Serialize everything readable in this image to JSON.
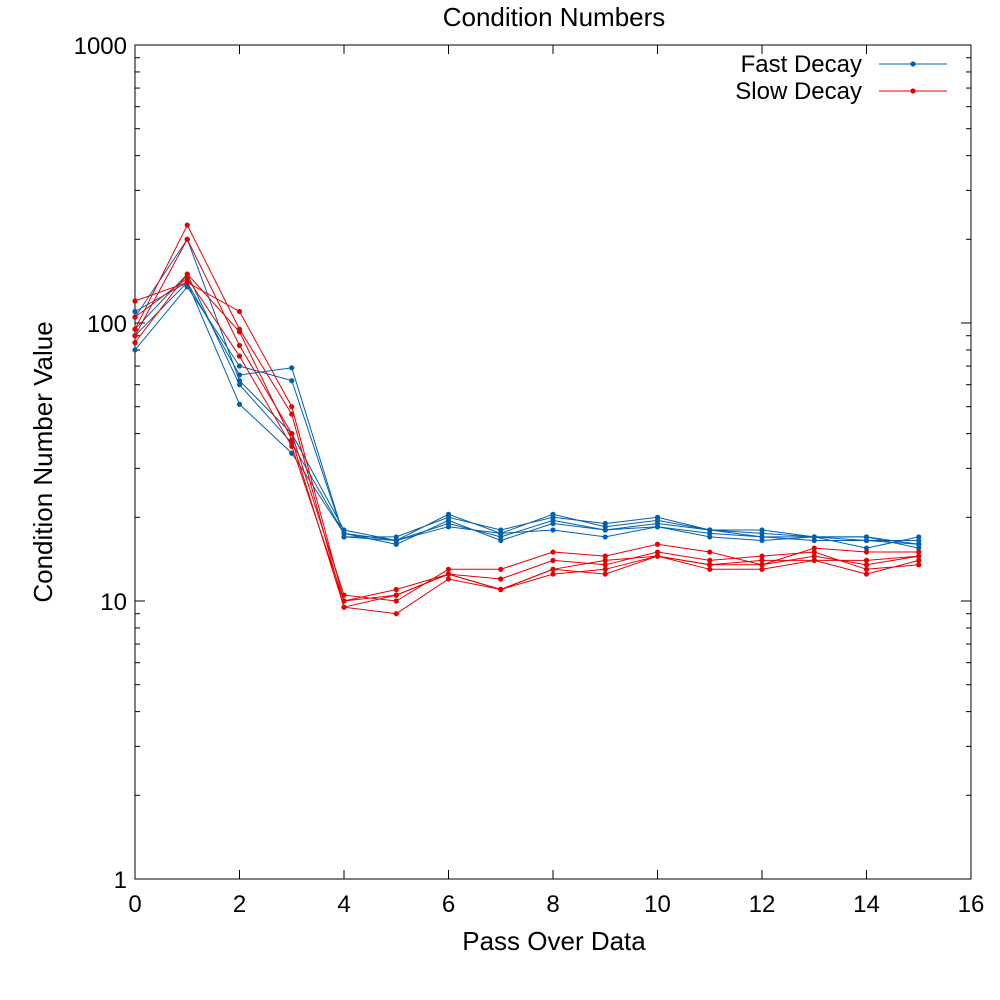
{
  "chart_data": {
    "type": "line",
    "title": "Condition Numbers",
    "xlabel": "Pass Over Data",
    "ylabel": "Condition Number Value",
    "xlim": [
      0,
      16
    ],
    "ylim": [
      1,
      1000
    ],
    "y_scale": "log",
    "x_ticks": [
      "0",
      "2",
      "4",
      "6",
      "8",
      "10",
      "12",
      "14",
      "16"
    ],
    "y_ticks": [
      "1",
      "10",
      "100",
      "1000"
    ],
    "grid": false,
    "legend_position": "top-right",
    "legend": [
      {
        "name": "Fast Decay",
        "color": "#0060ad"
      },
      {
        "name": "Slow Decay",
        "color": "#e60000"
      }
    ],
    "x": [
      0,
      1,
      2,
      3,
      4,
      5,
      6,
      7,
      8,
      9,
      10,
      11,
      12,
      13,
      14,
      15
    ],
    "series": [
      {
        "group": "Fast Decay",
        "color": "#0060ad",
        "values": [
          80,
          135,
          70,
          62,
          17,
          17,
          20,
          18,
          20,
          19,
          20,
          18,
          18,
          17,
          17,
          16
        ]
      },
      {
        "group": "Fast Decay",
        "color": "#0060ad",
        "values": [
          90,
          140,
          51,
          34,
          17.5,
          16.5,
          18.5,
          17.5,
          18,
          17,
          18.5,
          17,
          16.5,
          17,
          15.5,
          17
        ]
      },
      {
        "group": "Fast Decay",
        "color": "#0060ad",
        "values": [
          105,
          200,
          62,
          40,
          18,
          16.5,
          19,
          17,
          19.5,
          18,
          19,
          18,
          17.5,
          17,
          17,
          15.5
        ]
      },
      {
        "group": "Fast Decay",
        "color": "#0060ad",
        "values": [
          110,
          140,
          65,
          69,
          17,
          16.5,
          20.5,
          17.5,
          20.5,
          18.5,
          19.5,
          18,
          17,
          16.5,
          16.5,
          16
        ]
      },
      {
        "group": "Fast Decay",
        "color": "#0060ad",
        "values": [
          95,
          150,
          60,
          37,
          17.5,
          16,
          19.5,
          16.5,
          19,
          18,
          18.5,
          17.5,
          17,
          17,
          16.5,
          16.5
        ]
      },
      {
        "group": "Slow Decay",
        "color": "#e60000",
        "values": [
          120,
          140,
          110,
          50,
          10,
          10.5,
          12.5,
          11,
          13,
          14,
          14.5,
          13.5,
          13.5,
          14.5,
          13.5,
          14.5
        ]
      },
      {
        "group": "Slow Decay",
        "color": "#e60000",
        "values": [
          95,
          225,
          95,
          47,
          9.5,
          9,
          12,
          11,
          12.5,
          13,
          14.5,
          13,
          13,
          14,
          12.5,
          14
        ]
      },
      {
        "group": "Slow Decay",
        "color": "#e60000",
        "values": [
          90,
          200,
          83,
          40,
          10.5,
          10,
          13,
          13,
          15,
          14.5,
          16,
          15,
          13.5,
          15.5,
          15,
          15
        ]
      },
      {
        "group": "Slow Decay",
        "color": "#e60000",
        "values": [
          85,
          150,
          93,
          38,
          9.5,
          10.5,
          12.5,
          12,
          14,
          13.5,
          15,
          14,
          14.5,
          15,
          13,
          13.5
        ]
      },
      {
        "group": "Slow Decay",
        "color": "#e60000",
        "values": [
          105,
          145,
          76,
          36,
          10,
          11,
          12.5,
          11,
          13,
          12.5,
          14.5,
          13.5,
          14,
          14,
          14,
          14.5
        ]
      }
    ]
  }
}
